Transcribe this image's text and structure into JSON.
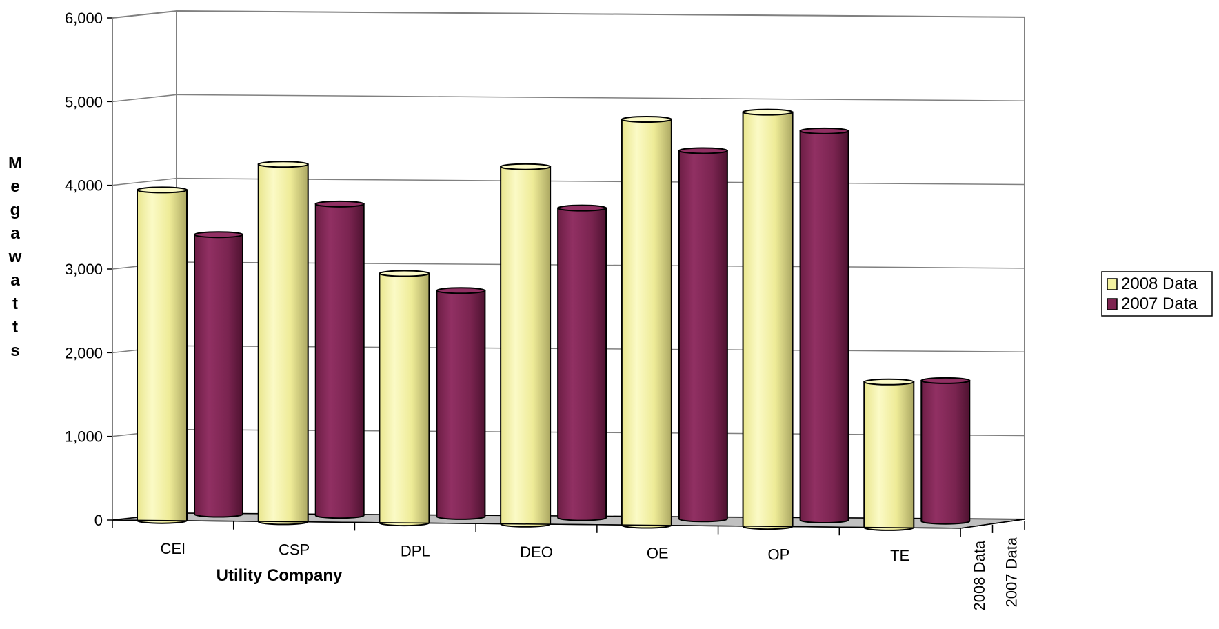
{
  "chart_data": {
    "type": "bar",
    "categories": [
      "CEI",
      "CSP",
      "DPL",
      "DEO",
      "OE",
      "OP",
      "TE"
    ],
    "series": [
      {
        "name": "2008 Data",
        "values": [
          3950,
          4270,
          2980,
          4270,
          4850,
          4950,
          1740
        ]
      },
      {
        "name": "2007 Data",
        "values": [
          3340,
          3720,
          2700,
          3700,
          4400,
          4650,
          1680
        ]
      }
    ],
    "xlabel": "Utility Company",
    "ylabel": "Megawatts",
    "ylim": [
      0,
      6000
    ],
    "yticks": [
      "0",
      "1,000",
      "2,000",
      "3,000",
      "4,000",
      "5,000",
      "6,000"
    ],
    "depth_labels": [
      "2008 Data",
      "2007 Data"
    ],
    "legend_position": "right",
    "grid": true,
    "colors": {
      "series_2008": "#f4f2a0",
      "series_2008_shade": "#bcb86a",
      "series_2007": "#7e2450",
      "series_2007_shade": "#5a1536",
      "floor": "#c0c0c0",
      "gridline": "#808080"
    }
  }
}
